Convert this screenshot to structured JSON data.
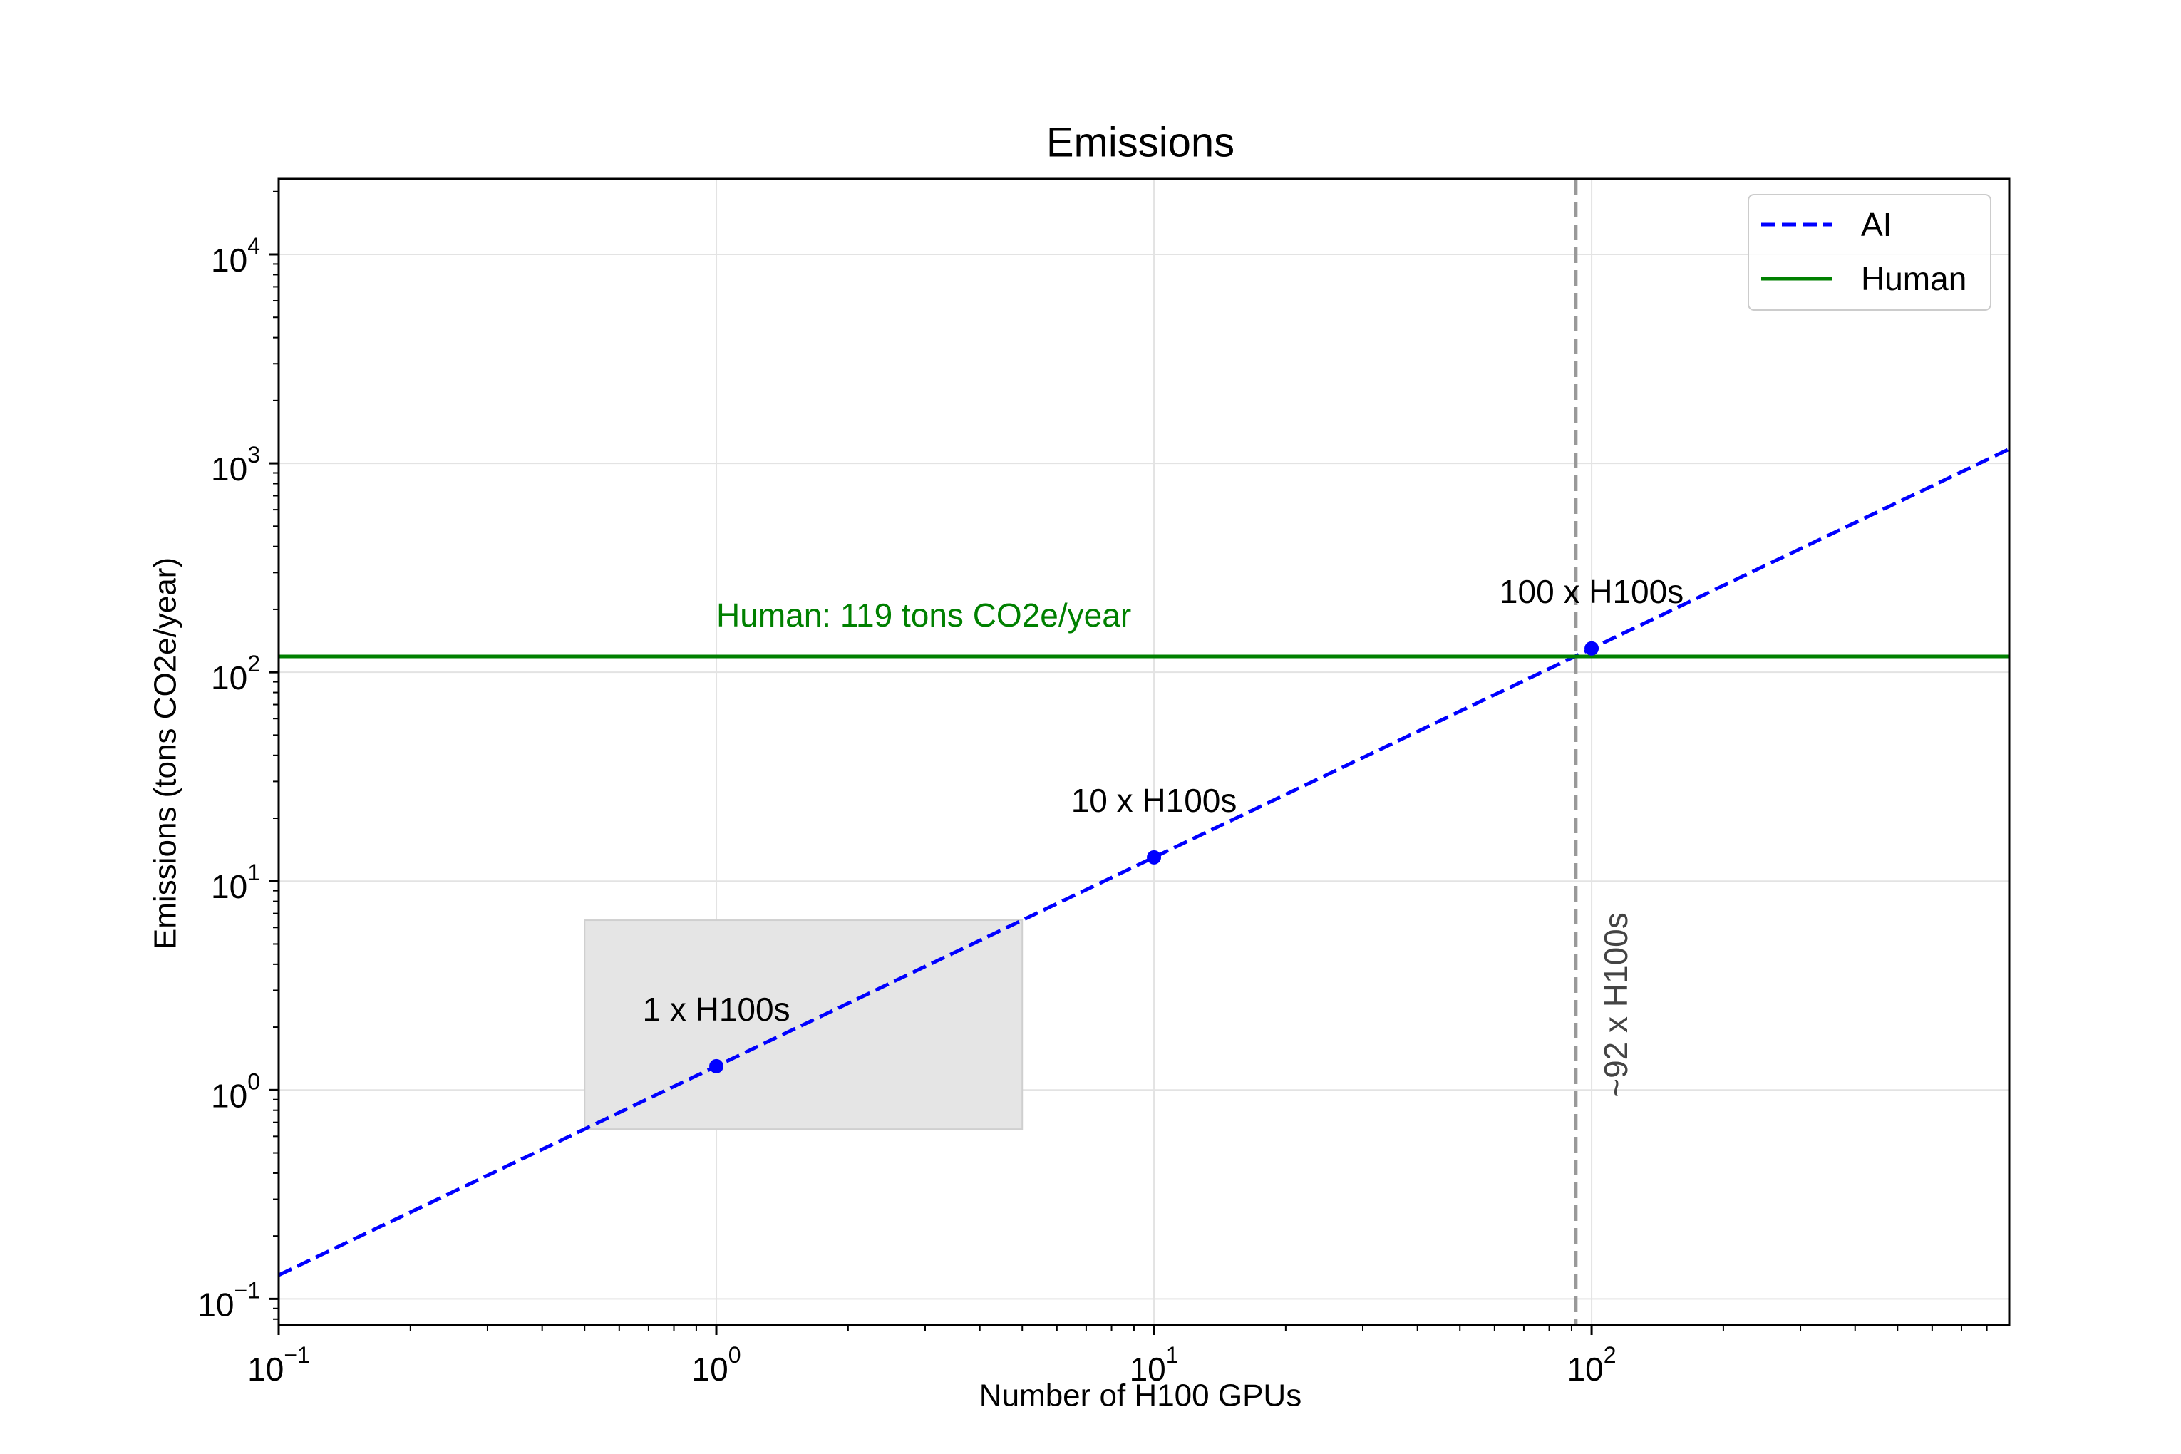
{
  "chart_data": {
    "type": "line",
    "title": "Emissions",
    "xlabel": "Number of H100 GPUs",
    "ylabel": "Emissions (tons CO2e/year)",
    "xscale": "log",
    "yscale": "log",
    "xlim": [
      0.1,
      900
    ],
    "ylim": [
      0.075,
      23000
    ],
    "x_ticks": [
      {
        "value": 0.1,
        "base": "10",
        "exp": "−1"
      },
      {
        "value": 1,
        "base": "10",
        "exp": "0"
      },
      {
        "value": 10,
        "base": "10",
        "exp": "1"
      },
      {
        "value": 100,
        "base": "10",
        "exp": "2"
      }
    ],
    "y_ticks": [
      {
        "value": 0.1,
        "base": "10",
        "exp": "−1"
      },
      {
        "value": 1,
        "base": "10",
        "exp": "0"
      },
      {
        "value": 10,
        "base": "10",
        "exp": "1"
      },
      {
        "value": 100,
        "base": "10",
        "exp": "2"
      },
      {
        "value": 1000,
        "base": "10",
        "exp": "3"
      },
      {
        "value": 10000,
        "base": "10",
        "exp": "4"
      }
    ],
    "grid": true,
    "legend_position": "top-right",
    "series": [
      {
        "name": "AI",
        "style": "dashed",
        "color": "#0000ff",
        "x": [
          0.1,
          900
        ],
        "y": [
          0.13,
          1170
        ]
      },
      {
        "name": "Human",
        "style": "solid",
        "color": "#008000",
        "x": [
          0.1,
          900
        ],
        "y": [
          119,
          119
        ]
      }
    ],
    "points": [
      {
        "x": 1,
        "y": 1.3,
        "label": "1 x H100s"
      },
      {
        "x": 10,
        "y": 13,
        "label": "10 x H100s"
      },
      {
        "x": 100,
        "y": 130,
        "label": "100 x H100s"
      }
    ],
    "human_annotation": {
      "text": "Human: 119 tons CO2e/year",
      "x": 1,
      "y": 119,
      "color": "#008000"
    },
    "vertical_line": {
      "x": 92,
      "label": "~92 x H100s",
      "color": "#999999"
    },
    "shaded_region": {
      "x": [
        0.5,
        5
      ],
      "y": [
        0.65,
        6.5
      ],
      "color": "#e5e5e5"
    }
  }
}
